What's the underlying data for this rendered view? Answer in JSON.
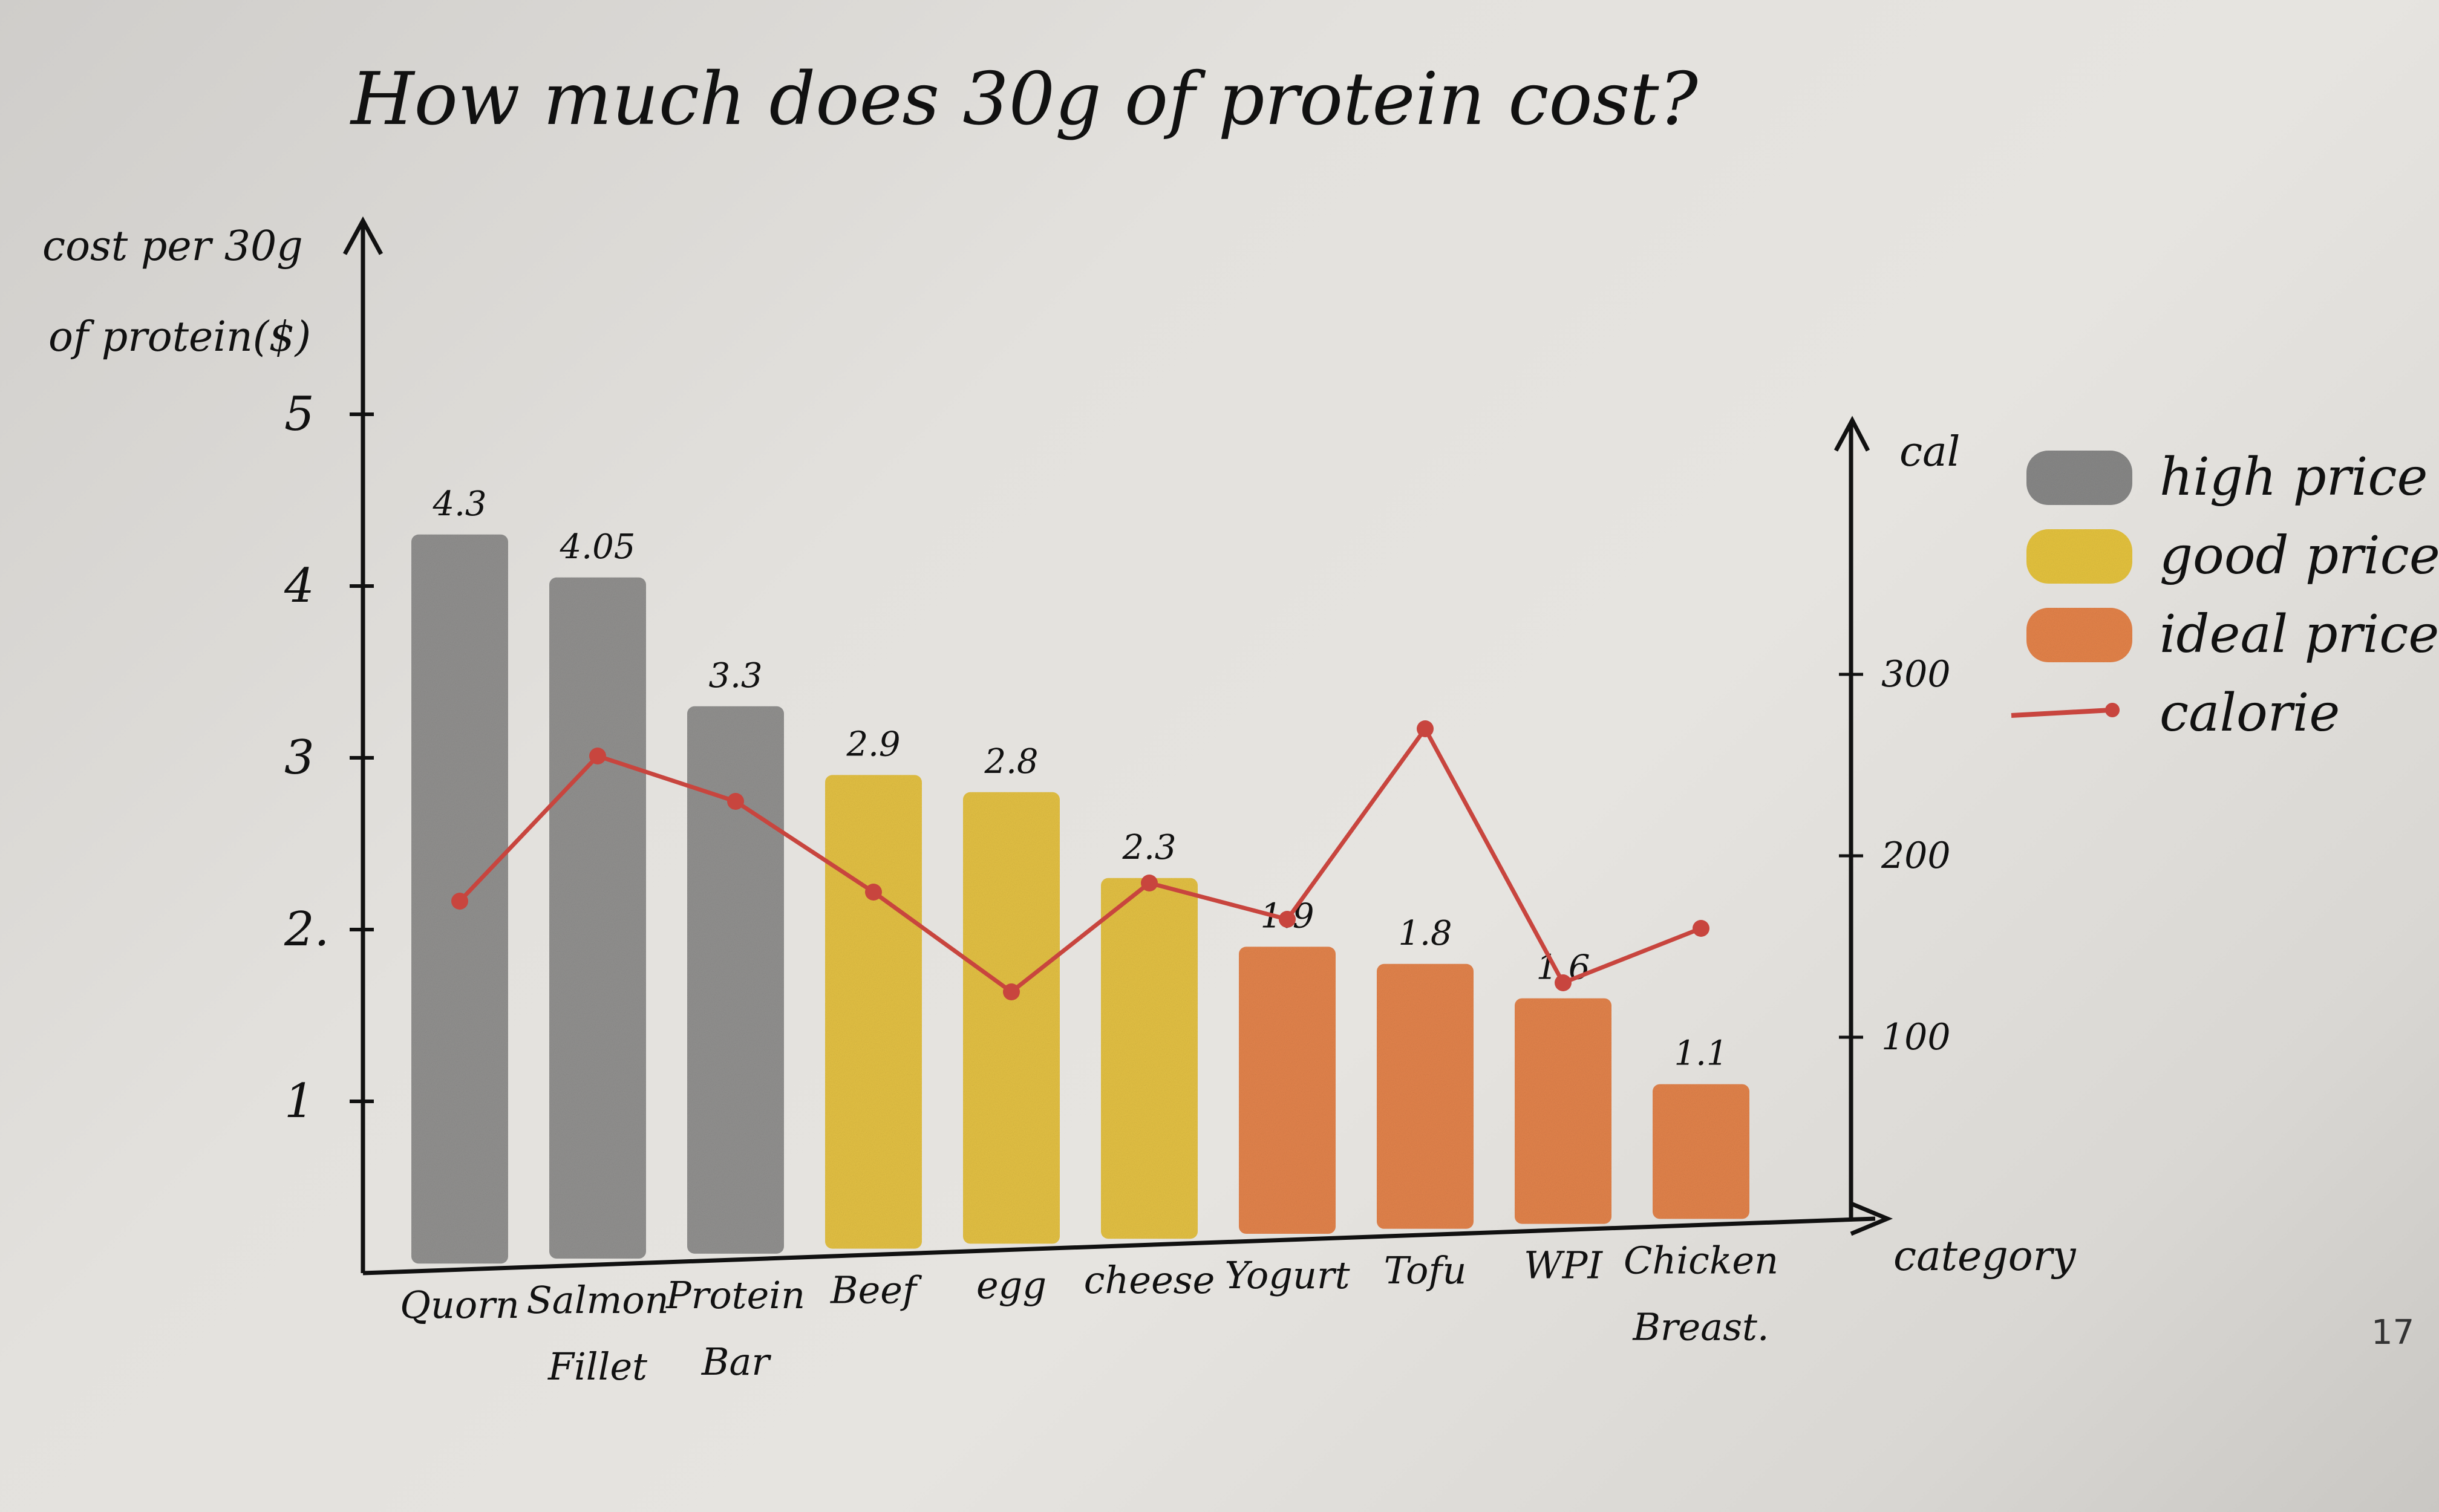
{
  "chart_data": {
    "type": "bar",
    "title": "How much does 30g of protein cost?",
    "ylabel": "cost per 30g of protein($)",
    "y2label": "cal",
    "xlabel": "category",
    "ylim": [
      0,
      5
    ],
    "yticks": [
      "1",
      "2.",
      "3",
      "4",
      "5"
    ],
    "y2lim": [
      0,
      300
    ],
    "y2ticks": [
      "100",
      "200",
      "300"
    ],
    "categories": [
      "Quorn",
      "Salmon Fillet",
      "Protein Bar",
      "Beef",
      "egg",
      "cheese",
      "Yogurt",
      "Tofu",
      "WPI",
      "Chicken Breast."
    ],
    "category_lines": [
      [
        "Quorn"
      ],
      [
        "Salmon",
        "Fillet"
      ],
      [
        "Protein",
        "Bar"
      ],
      [
        "Beef"
      ],
      [
        "egg"
      ],
      [
        "cheese"
      ],
      [
        "Yogurt"
      ],
      [
        "Tofu"
      ],
      [
        "WPI"
      ],
      [
        "Chicken",
        "Breast."
      ]
    ],
    "series": [
      {
        "name": "cost",
        "type": "bar",
        "values": [
          4.3,
          4.05,
          3.3,
          2.9,
          2.8,
          2.3,
          1.9,
          1.8,
          1.6,
          1.1
        ],
        "value_labels": [
          "4.3",
          "4.05",
          "3.3",
          "2.9",
          "2.8",
          "2.3",
          "1.9",
          "1.8",
          "1.6",
          "1.1"
        ],
        "price_class": [
          "high",
          "high",
          "high",
          "good",
          "good",
          "good",
          "ideal",
          "ideal",
          "ideal",
          "ideal"
        ]
      },
      {
        "name": "calorie",
        "type": "line",
        "axis": "right",
        "values": [
          175,
          255,
          230,
          180,
          125,
          185,
          165,
          270,
          130,
          160
        ]
      }
    ],
    "legend": {
      "placement": "right",
      "items": [
        {
          "label": "high price",
          "color": "#7f7f7f"
        },
        {
          "label": "good price",
          "color": "#e8c22e"
        },
        {
          "label": "ideal price",
          "color": "#e77a3a"
        },
        {
          "label": "calorie",
          "color": "#c8453e"
        }
      ]
    },
    "colors": {
      "high": "#8a8988",
      "good": "#e6bf33",
      "ideal": "#e57a3c",
      "calorie": "#c8453e"
    },
    "grid": false
  },
  "page_number": "17"
}
